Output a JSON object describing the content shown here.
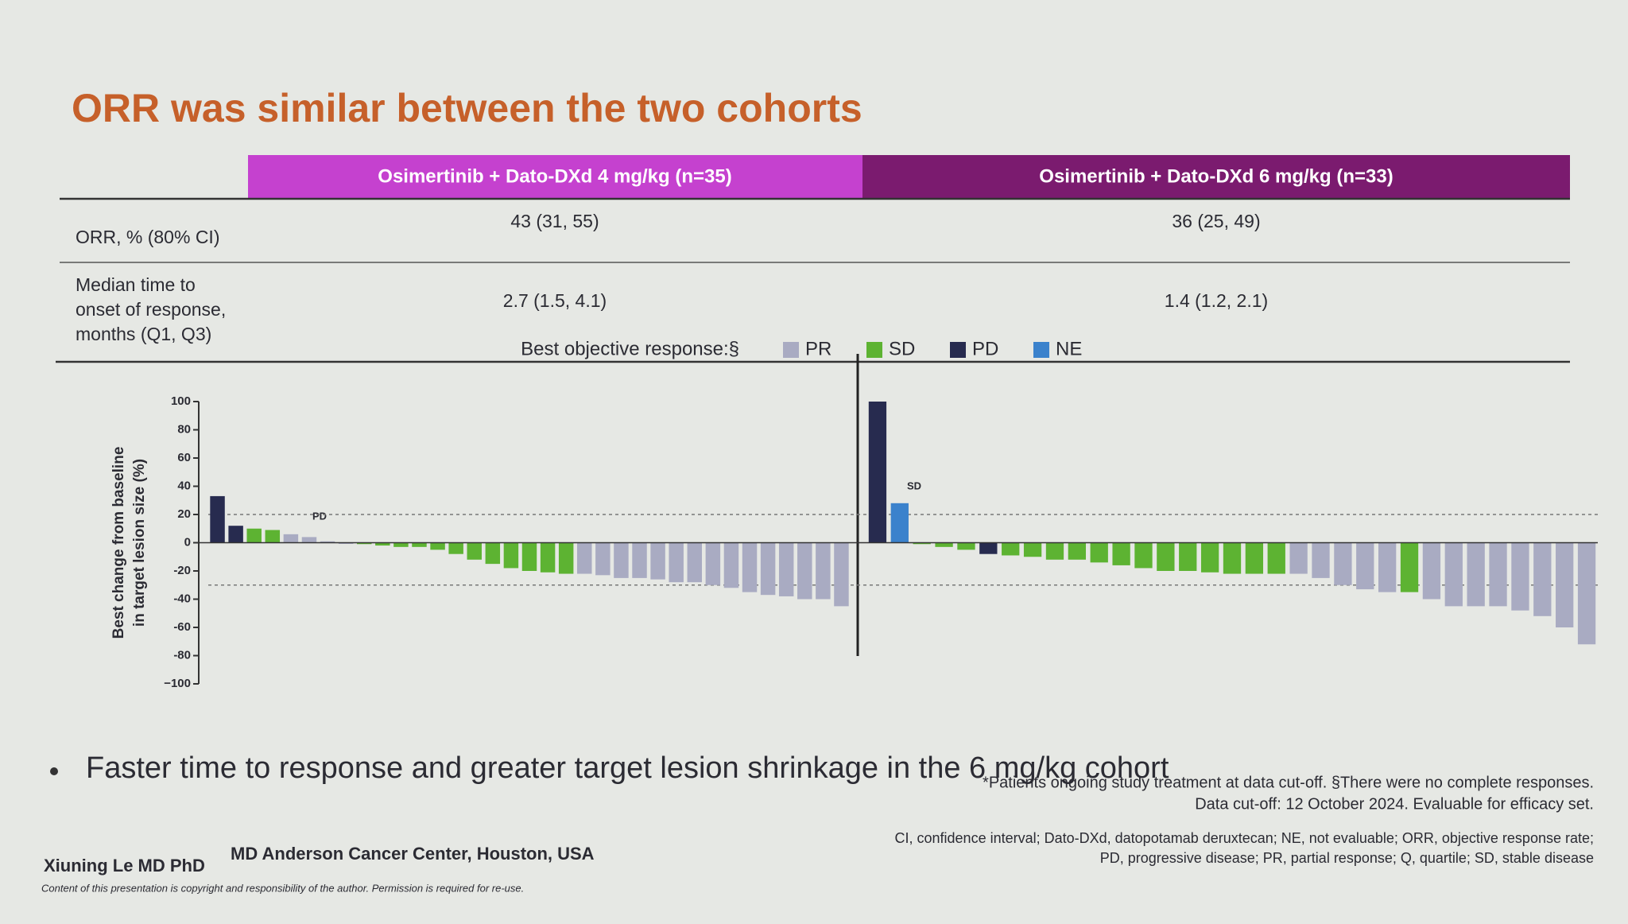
{
  "title": "ORR was similar between the two cohorts",
  "table": {
    "headers": [
      "Osimertinib + Dato-DXd 4 mg/kg (n=35)",
      "Osimertinib + Dato-DXd 6 mg/kg (n=33)"
    ],
    "rows": [
      {
        "label": [
          "ORR, % (80% CI)"
        ],
        "cells": [
          "43 (31, 55)",
          "36 (25, 49)"
        ]
      },
      {
        "label": [
          "Median time to",
          "onset of response,",
          "months (Q1, Q3)"
        ],
        "cells": [
          "2.7 (1.5, 4.1)",
          "1.4 (1.2, 2.1)"
        ]
      }
    ]
  },
  "chart_data": [
    {
      "type": "bar",
      "ylabel": [
        "Best change from baseline",
        "in target lesion size (%)"
      ],
      "ylim": [
        -100,
        100
      ],
      "yticks": [
        100,
        80,
        60,
        40,
        20,
        0,
        -20,
        -40,
        -60,
        -80,
        {
          "value": -100,
          "label": "−100"
        }
      ],
      "reference_lines": [
        20,
        -30
      ],
      "legend": {
        "title": "Best objective response:§",
        "items": [
          {
            "name": "PR",
            "color": "#a9abc2"
          },
          {
            "name": "SD",
            "color": "#5db332"
          },
          {
            "name": "PD",
            "color": "#272b4f"
          },
          {
            "name": "NE",
            "color": "#3b82cc"
          }
        ]
      },
      "annotation": "PD",
      "values": [
        33,
        12,
        10,
        9,
        6,
        4,
        1,
        0,
        -1,
        -2,
        -3,
        -3,
        -5,
        -8,
        -12,
        -15,
        -18,
        -20,
        -21,
        -22,
        -22,
        -23,
        -25,
        -25,
        -26,
        -28,
        -28,
        -30,
        -32,
        -35,
        -37,
        -38,
        -40,
        -40,
        -45
      ],
      "colors": [
        "#272b4f",
        "#272b4f",
        "#5db332",
        "#5db332",
        "#a9abc2",
        "#a9abc2",
        "#a9abc2",
        "#a9abc2",
        "#5db332",
        "#5db332",
        "#5db332",
        "#5db332",
        "#5db332",
        "#5db332",
        "#5db332",
        "#5db332",
        "#5db332",
        "#5db332",
        "#5db332",
        "#5db332",
        "#a9abc2",
        "#a9abc2",
        "#a9abc2",
        "#a9abc2",
        "#a9abc2",
        "#a9abc2",
        "#a9abc2",
        "#a9abc2",
        "#a9abc2",
        "#a9abc2",
        "#a9abc2",
        "#a9abc2",
        "#a9abc2",
        "#a9abc2",
        "#a9abc2"
      ]
    },
    {
      "type": "bar",
      "annotation": "SD",
      "values": [
        100,
        28,
        -1,
        -3,
        -5,
        -8,
        -9,
        -10,
        -12,
        -12,
        -14,
        -16,
        -18,
        -20,
        -20,
        -21,
        -22,
        -22,
        -22,
        -22,
        -25,
        -30,
        -33,
        -35,
        -35,
        -40,
        -45,
        -45,
        -45,
        -48,
        -52,
        -60,
        -72
      ],
      "colors": [
        "#272b4f",
        "#3b82cc",
        "#5db332",
        "#5db332",
        "#5db332",
        "#272b4f",
        "#5db332",
        "#5db332",
        "#5db332",
        "#5db332",
        "#5db332",
        "#5db332",
        "#5db332",
        "#5db332",
        "#5db332",
        "#5db332",
        "#5db332",
        "#5db332",
        "#5db332",
        "#a9abc2",
        "#a9abc2",
        "#a9abc2",
        "#a9abc2",
        "#a9abc2",
        "#5db332",
        "#a9abc2",
        "#a9abc2",
        "#a9abc2",
        "#a9abc2",
        "#a9abc2",
        "#a9abc2",
        "#a9abc2",
        "#a9abc2"
      ]
    }
  ],
  "bullet": "Faster time to response and greater target lesion shrinkage in the 6 mg/kg cohort",
  "footnotes": [
    "*Patients ongoing study treatment at data cut-off. §There were no complete responses.",
    "Data cut-off: 12 October 2024. Evaluable for efficacy set.",
    "CI, confidence interval; Dato-DXd, datopotamab deruxtecan; NE, not evaluable; ORR, objective response rate;",
    "PD, progressive disease; PR, partial response; Q, quartile; SD, stable disease"
  ],
  "author": "Xiuning Le MD PhD",
  "affiliation": "MD Anderson Cancer Center, Houston, USA",
  "copyright": "Content of this presentation is copyright and responsibility of the author. Permission is required for re-use."
}
